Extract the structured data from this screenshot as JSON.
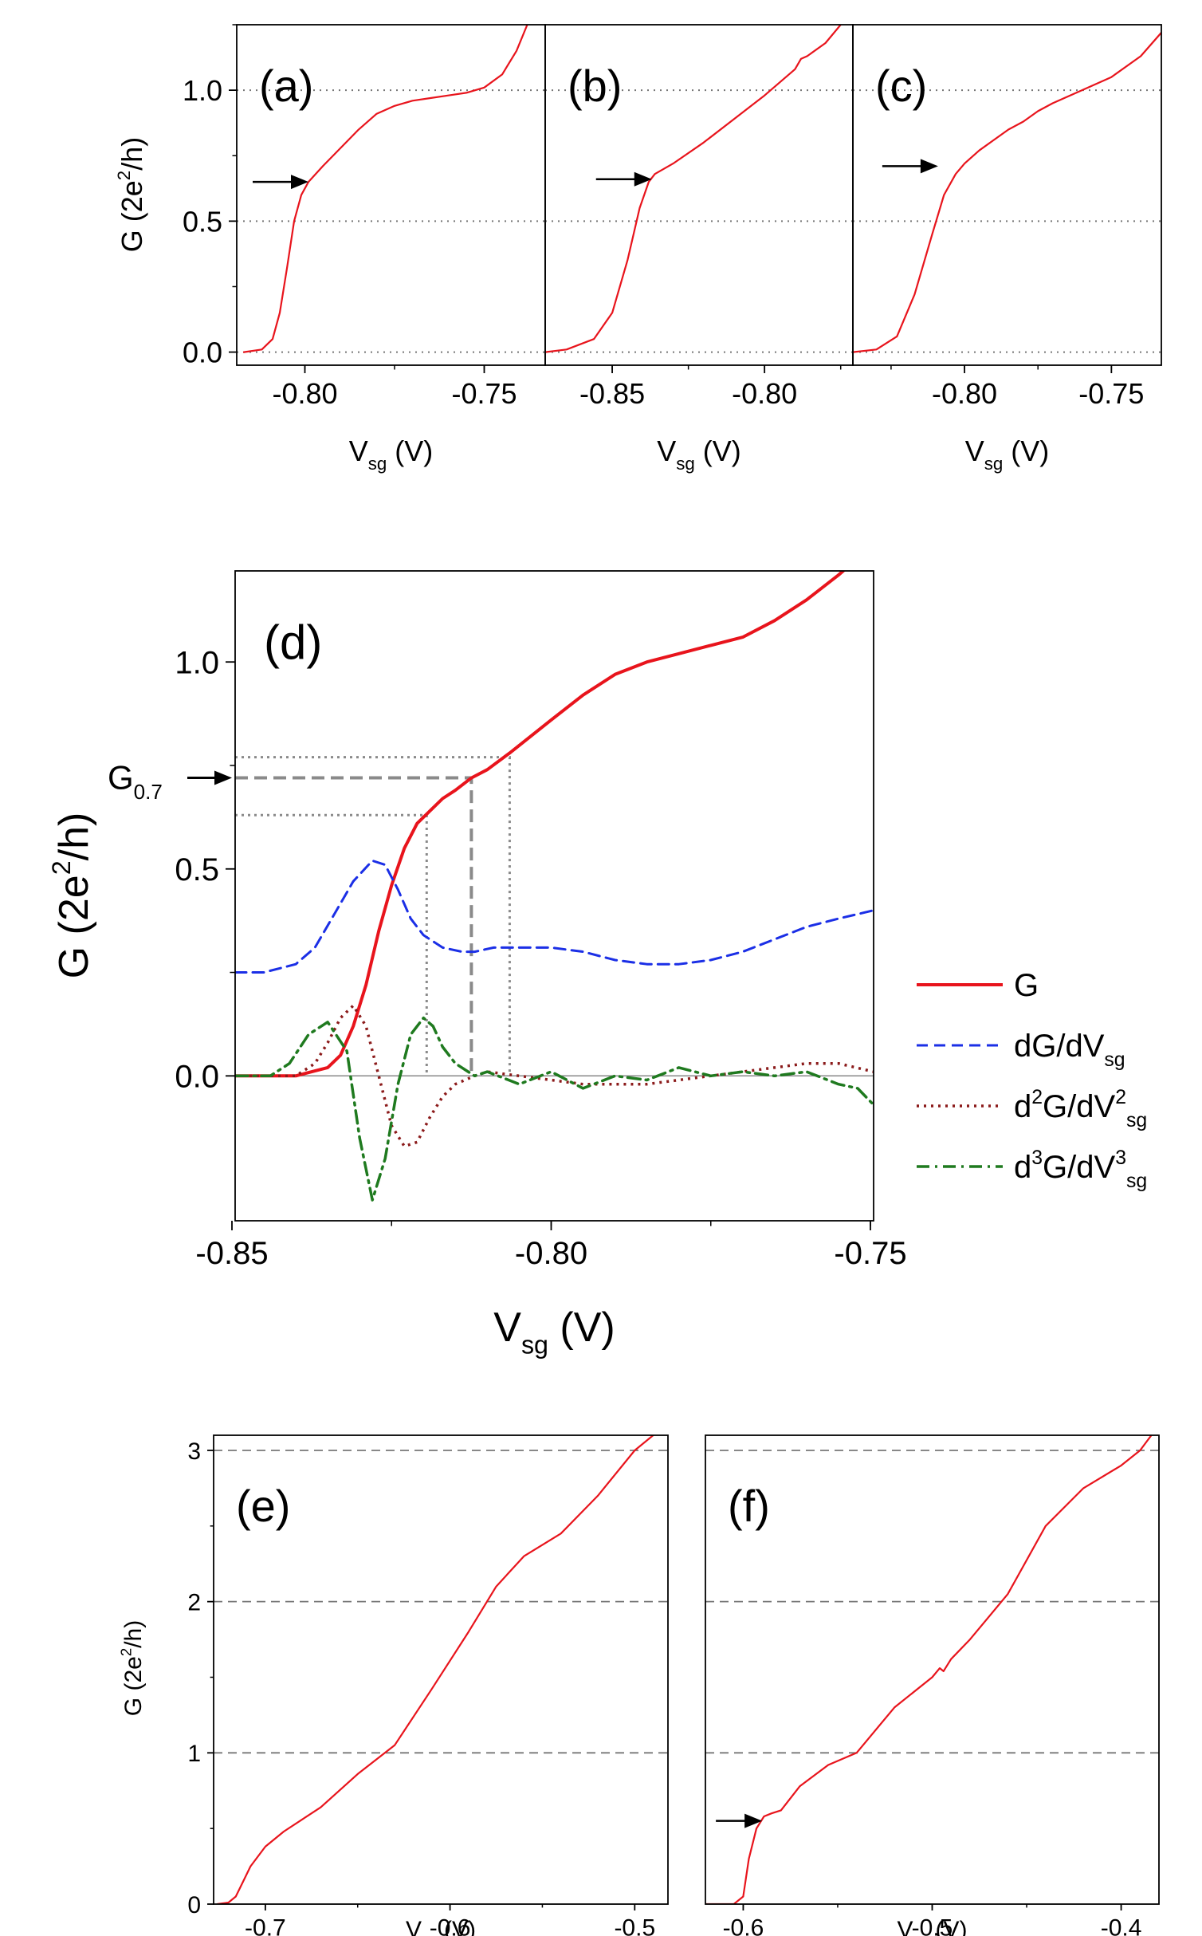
{
  "chart_data": [
    {
      "id": "a",
      "type": "line",
      "panel_label": "(a)",
      "title": "",
      "ylabel": "G (2e",
      "ylabel_parts": {
        "base": "G (2e",
        "sup": "2",
        "tail": "/h)"
      },
      "xlabel_parts": {
        "base": "V",
        "sub": "sg",
        "tail": " (V)"
      },
      "xlim": [
        -0.819,
        -0.733
      ],
      "ylim": [
        -0.05,
        1.25
      ],
      "xticks": [
        -0.8,
        -0.75
      ],
      "xtick_labels": [
        "-0.80",
        "-0.75"
      ],
      "yticks": [
        0.0,
        0.5,
        1.0
      ],
      "ytick_labels": [
        "0.0",
        "0.5",
        "1.0"
      ],
      "ref_lines": [
        0.0,
        0.5,
        1.0
      ],
      "ref_style": "dotted",
      "arrow_at": {
        "x": -0.799,
        "y": 0.65
      },
      "series": [
        {
          "name": "G",
          "color": "#e8141c",
          "style": "solid",
          "x": [
            -0.817,
            -0.812,
            -0.809,
            -0.807,
            -0.805,
            -0.803,
            -0.801,
            -0.799,
            -0.797,
            -0.795,
            -0.79,
            -0.785,
            -0.78,
            -0.775,
            -0.77,
            -0.765,
            -0.76,
            -0.755,
            -0.75,
            -0.745,
            -0.741,
            -0.738
          ],
          "y": [
            0.0,
            0.01,
            0.05,
            0.15,
            0.32,
            0.5,
            0.6,
            0.65,
            0.68,
            0.71,
            0.78,
            0.85,
            0.91,
            0.94,
            0.96,
            0.97,
            0.98,
            0.99,
            1.01,
            1.06,
            1.15,
            1.25
          ]
        }
      ]
    },
    {
      "id": "b",
      "type": "line",
      "panel_label": "(b)",
      "title": "",
      "ylabel": "",
      "xlabel_parts": {
        "base": "V",
        "sub": "sg",
        "tail": " (V)"
      },
      "xlim": [
        -0.872,
        -0.771
      ],
      "ylim": [
        -0.05,
        1.25
      ],
      "xticks": [
        -0.85,
        -0.8
      ],
      "xtick_labels": [
        "-0.85",
        "-0.80"
      ],
      "ref_lines": [
        0.0,
        0.5,
        1.0
      ],
      "ref_style": "dotted",
      "arrow_at": {
        "x": -0.837,
        "y": 0.66
      },
      "series": [
        {
          "name": "G",
          "color": "#e8141c",
          "style": "solid",
          "x": [
            -0.872,
            -0.865,
            -0.856,
            -0.85,
            -0.845,
            -0.841,
            -0.838,
            -0.836,
            -0.83,
            -0.82,
            -0.81,
            -0.8,
            -0.79,
            -0.788,
            -0.786,
            -0.78,
            -0.775
          ],
          "y": [
            0.0,
            0.01,
            0.05,
            0.15,
            0.35,
            0.55,
            0.65,
            0.68,
            0.72,
            0.8,
            0.89,
            0.98,
            1.08,
            1.12,
            1.13,
            1.18,
            1.25
          ]
        }
      ]
    },
    {
      "id": "c",
      "type": "line",
      "panel_label": "(c)",
      "title": "",
      "ylabel": "",
      "xlabel_parts": {
        "base": "V",
        "sub": "sg",
        "tail": " (V)"
      },
      "xlim": [
        -0.838,
        -0.733
      ],
      "ylim": [
        -0.05,
        1.25
      ],
      "xticks": [
        -0.8,
        -0.75
      ],
      "xtick_labels": [
        "-0.80",
        "-0.75"
      ],
      "ref_lines": [
        0.0,
        0.5,
        1.0
      ],
      "ref_style": "dotted",
      "arrow_at": {
        "x": -0.809,
        "y": 0.71
      },
      "series": [
        {
          "name": "G",
          "color": "#e8141c",
          "style": "solid",
          "x": [
            -0.838,
            -0.83,
            -0.823,
            -0.817,
            -0.811,
            -0.807,
            -0.803,
            -0.8,
            -0.795,
            -0.79,
            -0.785,
            -0.78,
            -0.775,
            -0.77,
            -0.76,
            -0.75,
            -0.74,
            -0.733
          ],
          "y": [
            0.0,
            0.01,
            0.06,
            0.22,
            0.45,
            0.6,
            0.68,
            0.72,
            0.77,
            0.81,
            0.85,
            0.88,
            0.92,
            0.95,
            1.0,
            1.05,
            1.13,
            1.22
          ]
        }
      ]
    },
    {
      "id": "d",
      "type": "line",
      "panel_label": "(d)",
      "title": "",
      "ylabel_parts": {
        "base": "G (2e",
        "sup": "2",
        "tail": "/h)"
      },
      "xlabel_parts": {
        "base": "V",
        "sub": "sg",
        "tail": " (V)"
      },
      "xlim": [
        -0.8495,
        -0.7495
      ],
      "ylim": [
        -0.35,
        1.22
      ],
      "xticks": [
        -0.85,
        -0.8,
        -0.75
      ],
      "xtick_labels": [
        "-0.85",
        "-0.80",
        "-0.75"
      ],
      "yticks": [
        0.0,
        0.5,
        1.0
      ],
      "ytick_labels": [
        "0.0",
        "0.5",
        "1.0"
      ],
      "zero_line": true,
      "annotation": {
        "base": "G",
        "sub": "0.7",
        "value": 0.72
      },
      "guide_lines": {
        "dashed": {
          "y": 0.72,
          "x": -0.8125
        },
        "dotted": [
          {
            "y": 0.77,
            "x": -0.8065
          },
          {
            "y": 0.63,
            "x": -0.8195
          }
        ]
      },
      "legend": {
        "placement": "right",
        "entries": [
          {
            "base": "G"
          },
          {
            "base": "dG/dV",
            "sub": "sg"
          },
          {
            "pre": "d",
            "pre_sup": "2",
            "base": "G/dV",
            "sup": "2",
            "sub": "sg"
          },
          {
            "pre": "d",
            "pre_sup": "3",
            "base": "G/dV",
            "sup": "3",
            "sub": "sg"
          }
        ]
      },
      "series": [
        {
          "name": "G",
          "color": "#e8141c",
          "style": "solid",
          "width": 4,
          "x": [
            -0.8495,
            -0.84,
            -0.835,
            -0.833,
            -0.831,
            -0.829,
            -0.827,
            -0.825,
            -0.823,
            -0.821,
            -0.819,
            -0.817,
            -0.815,
            -0.8125,
            -0.81,
            -0.8065,
            -0.8,
            -0.795,
            -0.79,
            -0.785,
            -0.78,
            -0.775,
            -0.77,
            -0.765,
            -0.76,
            -0.755,
            -0.752
          ],
          "y": [
            0.0,
            0.0,
            0.02,
            0.05,
            0.12,
            0.22,
            0.35,
            0.46,
            0.55,
            0.61,
            0.64,
            0.67,
            0.69,
            0.72,
            0.74,
            0.78,
            0.86,
            0.92,
            0.97,
            1.0,
            1.02,
            1.04,
            1.06,
            1.1,
            1.15,
            1.21,
            1.25
          ]
        },
        {
          "name": "dG/dV_sg",
          "color": "#1b2fe6",
          "style": "dashed",
          "width": 3,
          "x": [
            -0.8495,
            -0.845,
            -0.84,
            -0.837,
            -0.834,
            -0.831,
            -0.828,
            -0.826,
            -0.824,
            -0.822,
            -0.82,
            -0.817,
            -0.814,
            -0.812,
            -0.809,
            -0.805,
            -0.8,
            -0.795,
            -0.79,
            -0.785,
            -0.78,
            -0.775,
            -0.77,
            -0.765,
            -0.76,
            -0.755,
            -0.7495
          ],
          "y": [
            0.25,
            0.25,
            0.27,
            0.31,
            0.39,
            0.47,
            0.52,
            0.51,
            0.45,
            0.38,
            0.34,
            0.31,
            0.3,
            0.3,
            0.31,
            0.31,
            0.31,
            0.3,
            0.28,
            0.27,
            0.27,
            0.28,
            0.3,
            0.33,
            0.36,
            0.38,
            0.4
          ]
        },
        {
          "name": "d2G/dV2_sg",
          "color": "#8b1a1a",
          "style": "dotted",
          "width": 3.5,
          "x": [
            -0.8495,
            -0.84,
            -0.837,
            -0.835,
            -0.833,
            -0.831,
            -0.829,
            -0.827,
            -0.825,
            -0.823,
            -0.821,
            -0.819,
            -0.817,
            -0.815,
            -0.812,
            -0.81,
            -0.805,
            -0.8,
            -0.795,
            -0.79,
            -0.785,
            -0.78,
            -0.775,
            -0.77,
            -0.765,
            -0.76,
            -0.755,
            -0.7495
          ],
          "y": [
            0.0,
            0.0,
            0.03,
            0.08,
            0.14,
            0.17,
            0.12,
            0.0,
            -0.12,
            -0.17,
            -0.16,
            -0.1,
            -0.05,
            -0.02,
            0.0,
            0.01,
            0.0,
            -0.01,
            -0.02,
            -0.02,
            -0.02,
            -0.01,
            0.0,
            0.01,
            0.02,
            0.03,
            0.03,
            0.01
          ]
        },
        {
          "name": "d3G/dV3_sg",
          "color": "#1f7a1f",
          "style": "dashdot",
          "width": 3.5,
          "x": [
            -0.8495,
            -0.844,
            -0.841,
            -0.838,
            -0.835,
            -0.832,
            -0.83,
            -0.828,
            -0.826,
            -0.824,
            -0.822,
            -0.82,
            -0.8185,
            -0.817,
            -0.815,
            -0.812,
            -0.81,
            -0.805,
            -0.8,
            -0.795,
            -0.79,
            -0.785,
            -0.78,
            -0.775,
            -0.77,
            -0.765,
            -0.76,
            -0.755,
            -0.752,
            -0.7495
          ],
          "y": [
            0.0,
            0.0,
            0.03,
            0.1,
            0.13,
            0.06,
            -0.15,
            -0.3,
            -0.2,
            -0.02,
            0.1,
            0.14,
            0.12,
            0.07,
            0.03,
            0.0,
            0.01,
            -0.02,
            0.01,
            -0.03,
            0.0,
            -0.01,
            0.02,
            0.0,
            0.01,
            0.0,
            0.01,
            -0.02,
            -0.03,
            -0.07
          ]
        }
      ]
    },
    {
      "id": "e",
      "type": "line",
      "panel_label": "(e)",
      "title": "",
      "ylabel_parts": {
        "base": "G (2e",
        "sup": "2",
        "tail": "/h)"
      },
      "xlabel_parts": {
        "base": "V",
        "sub": "sg",
        "tail": " (V)"
      },
      "xlim": [
        -0.728,
        -0.482
      ],
      "ylim": [
        0,
        3.1
      ],
      "xticks": [
        -0.7,
        -0.6,
        -0.5
      ],
      "xtick_labels": [
        "-0.7",
        "-0.6",
        "-0.5"
      ],
      "yticks": [
        0,
        1,
        2,
        3
      ],
      "ytick_labels": [
        "0",
        "1",
        "2",
        "3"
      ],
      "ref_lines": [
        1,
        2,
        3
      ],
      "ref_style": "dashed",
      "series": [
        {
          "name": "G",
          "color": "#e8141c",
          "style": "solid",
          "x": [
            -0.726,
            -0.72,
            -0.716,
            -0.712,
            -0.708,
            -0.7,
            -0.69,
            -0.67,
            -0.65,
            -0.63,
            -0.61,
            -0.59,
            -0.575,
            -0.56,
            -0.54,
            -0.52,
            -0.5,
            -0.49
          ],
          "y": [
            0.0,
            0.01,
            0.05,
            0.15,
            0.25,
            0.38,
            0.48,
            0.64,
            0.86,
            1.05,
            1.42,
            1.8,
            2.1,
            2.3,
            2.45,
            2.7,
            3.0,
            3.1
          ]
        }
      ]
    },
    {
      "id": "f",
      "type": "line",
      "panel_label": "(f)",
      "title": "",
      "ylabel": "",
      "xlabel_parts": {
        "base": "V",
        "sub": "sg",
        "tail": " (V)"
      },
      "xlim": [
        -0.62,
        -0.38
      ],
      "ylim": [
        0,
        3.1
      ],
      "xticks": [
        -0.6,
        -0.5,
        -0.4
      ],
      "xtick_labels": [
        "-0.6",
        "-0.5",
        "-0.4"
      ],
      "ref_lines": [
        1,
        2,
        3
      ],
      "ref_style": "dashed",
      "arrow_at": {
        "x": -0.59,
        "y": 0.55
      },
      "series": [
        {
          "name": "G",
          "color": "#e8141c",
          "style": "solid",
          "x": [
            -0.62,
            -0.605,
            -0.6,
            -0.597,
            -0.593,
            -0.589,
            -0.585,
            -0.58,
            -0.57,
            -0.555,
            -0.54,
            -0.52,
            -0.5,
            -0.496,
            -0.494,
            -0.49,
            -0.48,
            -0.46,
            -0.44,
            -0.42,
            -0.4,
            -0.39,
            -0.384
          ],
          "y": [
            0.0,
            0.0,
            0.05,
            0.3,
            0.5,
            0.58,
            0.6,
            0.62,
            0.78,
            0.92,
            1.0,
            1.3,
            1.5,
            1.56,
            1.54,
            1.62,
            1.75,
            2.05,
            2.5,
            2.75,
            2.9,
            3.0,
            3.1
          ]
        }
      ]
    }
  ]
}
